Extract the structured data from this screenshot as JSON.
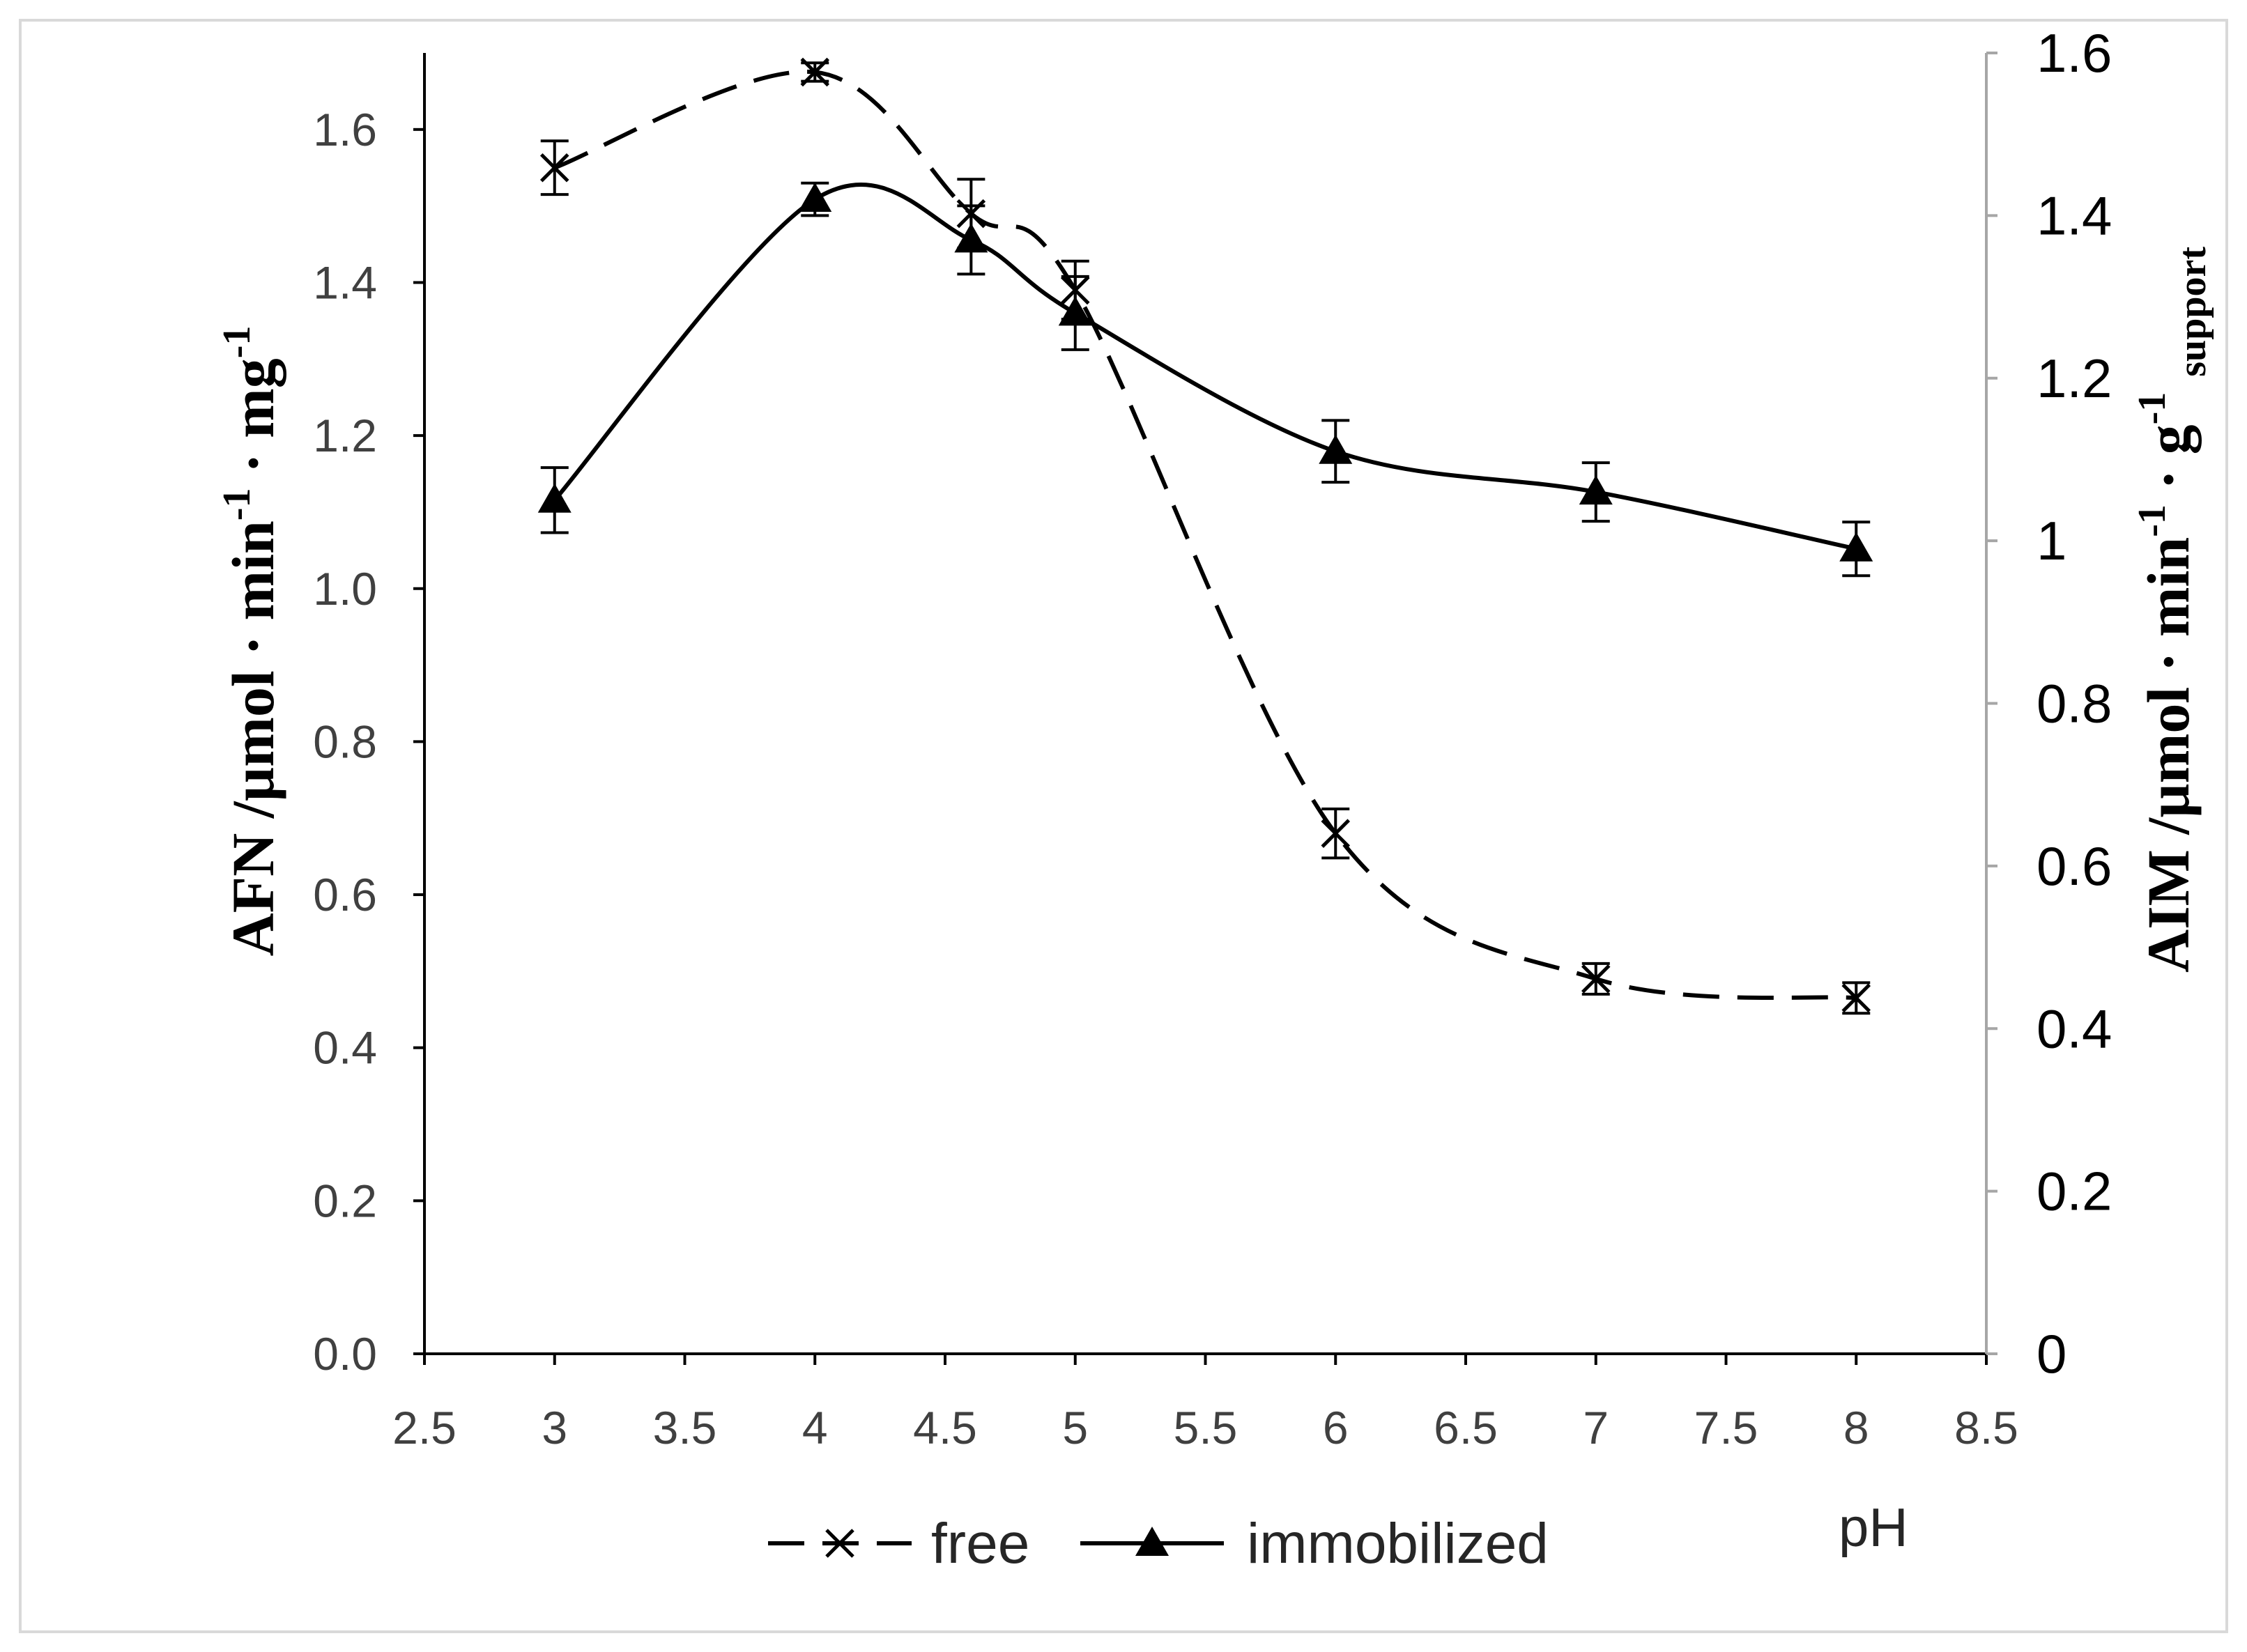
{
  "chart_data": {
    "type": "line",
    "smooth": true,
    "x": [
      3,
      4,
      4.6,
      5,
      6,
      7,
      8
    ],
    "xlabel": "pH",
    "xlim": [
      2.5,
      8.5
    ],
    "xticks": [
      "2.5",
      "3",
      "3.5",
      "4",
      "4.5",
      "5",
      "5.5",
      "6",
      "6.5",
      "7",
      "7.5",
      "8",
      "8.5"
    ],
    "ylabel": [
      {
        "text": "AFN /µmol · min"
      },
      {
        "text": "-1",
        "sup": true
      },
      {
        "text": " · mg"
      },
      {
        "text": "-1",
        "sup": true
      }
    ],
    "ylim": [
      0,
      1.7
    ],
    "yticks": [
      "0.0",
      "0.2",
      "0.4",
      "0.6",
      "0.8",
      "1.0",
      "1.2",
      "1.4",
      "1.6"
    ],
    "y2label": [
      {
        "text": "AIM /µmol · min"
      },
      {
        "text": "-1",
        "sup": true
      },
      {
        "text": " · g"
      },
      {
        "text": "-1",
        "sup": true
      },
      {
        "text": "support",
        "sub": true
      }
    ],
    "y2lim": [
      0,
      1.6
    ],
    "y2ticks": [
      "0",
      "0.2",
      "0.4",
      "0.6",
      "0.8",
      "1",
      "1.2",
      "1.4",
      "1.6"
    ],
    "series": [
      {
        "name": "free",
        "axis": "left",
        "line": "dashed",
        "marker": "cross",
        "values": [
          1.55,
          1.675,
          1.49,
          1.39,
          0.68,
          0.49,
          0.465
        ],
        "errors": [
          0.035,
          0.012,
          0.045,
          0.038,
          0.032,
          0.02,
          0.02
        ]
      },
      {
        "name": "immobilized",
        "axis": "right",
        "line": "solid",
        "marker": "triangle",
        "values": [
          1.05,
          1.42,
          1.37,
          1.28,
          1.11,
          1.06,
          0.99
        ],
        "errors": [
          0.04,
          0.02,
          0.042,
          0.045,
          0.038,
          0.036,
          0.033
        ]
      }
    ],
    "grid": false,
    "legend_position": "bottom",
    "colors": {
      "line": "#000000",
      "axis": "#000000",
      "secondary_axis": "#a6a6a6",
      "tick_text": "#404040",
      "right_tick_text": "#000000",
      "legend_text": "#262626",
      "border": "#d9d9d9"
    }
  }
}
